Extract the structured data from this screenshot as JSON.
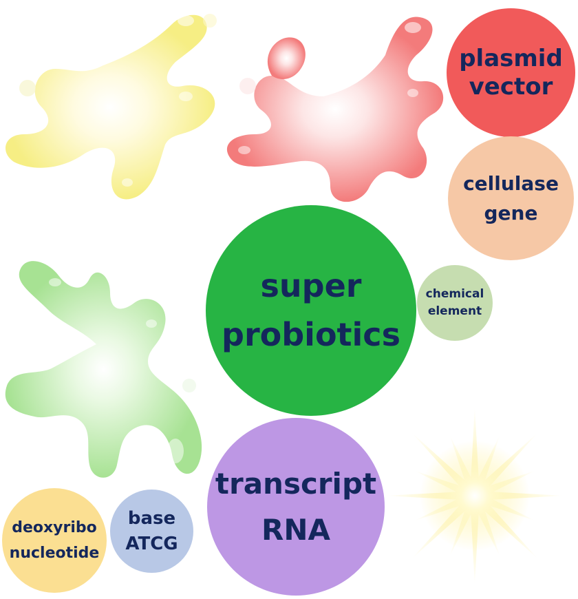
{
  "nodes": {
    "plasmid_vector": {
      "line1": "plasmid",
      "line2": "vector",
      "color": "#f15a5a"
    },
    "cellulase_gene": {
      "line1": "cellulase",
      "line2": "gene",
      "color": "#f6c8a6"
    },
    "super_probiotics": {
      "line1": "super",
      "line2": "probiotics",
      "color": "#27b444"
    },
    "chemical_element": {
      "line1": "chemical",
      "line2": "element",
      "color": "#c6ddb0"
    },
    "transcript_rna": {
      "line1": "transcript",
      "line2": "RNA",
      "color": "#bd97e4"
    },
    "base_atcg": {
      "line1": "base",
      "line2": "ATCG",
      "color": "#b8c8e6"
    },
    "deoxyribo_nucleotide": {
      "line1": "deoxyribo",
      "line2": "nucleotide",
      "color": "#fbdf92"
    }
  },
  "text_color": "#14275c",
  "splat_colors": {
    "yellow": "#f7ef86",
    "red": "#f47f7f",
    "green": "#aee49a",
    "sun": "#fbf0a0"
  }
}
